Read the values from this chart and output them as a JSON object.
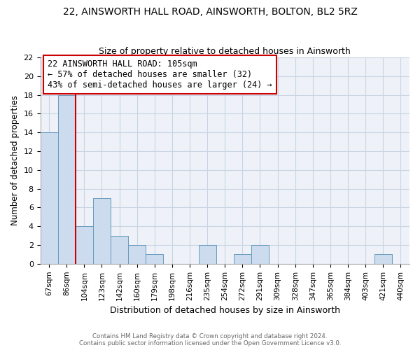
{
  "title": "22, AINSWORTH HALL ROAD, AINSWORTH, BOLTON, BL2 5RZ",
  "subtitle": "Size of property relative to detached houses in Ainsworth",
  "xlabel": "Distribution of detached houses by size in Ainsworth",
  "ylabel": "Number of detached properties",
  "bar_labels": [
    "67sqm",
    "86sqm",
    "104sqm",
    "123sqm",
    "142sqm",
    "160sqm",
    "179sqm",
    "198sqm",
    "216sqm",
    "235sqm",
    "254sqm",
    "272sqm",
    "291sqm",
    "309sqm",
    "328sqm",
    "347sqm",
    "365sqm",
    "384sqm",
    "403sqm",
    "421sqm",
    "440sqm"
  ],
  "bar_values": [
    14,
    18,
    4,
    7,
    3,
    2,
    1,
    0,
    0,
    2,
    0,
    1,
    2,
    0,
    0,
    0,
    0,
    0,
    0,
    1,
    0
  ],
  "bar_color": "#ccdcee",
  "bar_edge_color": "#6699bb",
  "property_line_x": 1.5,
  "property_line_label": "22 AINSWORTH HALL ROAD: 105sqm",
  "annotation_line1": "← 57% of detached houses are smaller (32)",
  "annotation_line2": "43% of semi-detached houses are larger (24) →",
  "annotation_box_color": "#ffffff",
  "annotation_box_edge": "#cc0000",
  "property_line_color": "#cc0000",
  "ylim": [
    0,
    22
  ],
  "yticks": [
    0,
    2,
    4,
    6,
    8,
    10,
    12,
    14,
    16,
    18,
    20,
    22
  ],
  "grid_color": "#c8d4e4",
  "footer_line1": "Contains HM Land Registry data © Crown copyright and database right 2024.",
  "footer_line2": "Contains public sector information licensed under the Open Government Licence v3.0.",
  "plot_bg_color": "#eef2f8",
  "fig_bg_color": "#ffffff",
  "title_fontsize": 10,
  "subtitle_fontsize": 9,
  "title_fontweight": "normal",
  "annotation_fontsize": 8.5
}
